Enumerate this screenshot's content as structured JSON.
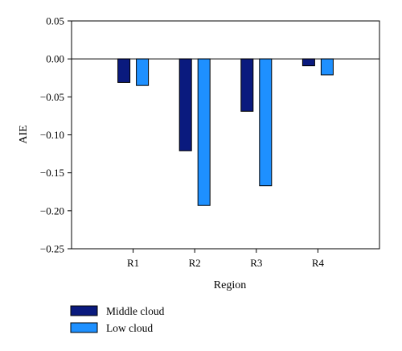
{
  "chart_data": {
    "type": "bar",
    "categories": [
      "R1",
      "R2",
      "R3",
      "R4"
    ],
    "series": [
      {
        "name": "Middle cloud",
        "values": [
          -0.031,
          -0.121,
          -0.069,
          -0.009
        ],
        "color": "#0a1a7e"
      },
      {
        "name": "Low cloud",
        "values": [
          -0.035,
          -0.193,
          -0.167,
          -0.021
        ],
        "color": "#1e90ff"
      }
    ],
    "xlabel": "Region",
    "ylabel": "AIE",
    "ylim": [
      -0.25,
      0.05
    ],
    "yticks": [
      0.05,
      0.0,
      -0.05,
      -0.1,
      -0.15,
      -0.2,
      -0.25
    ],
    "ytick_labels": [
      "0.05",
      "0.00",
      "−0.05",
      "−0.10",
      "−0.15",
      "−0.20",
      "−0.25"
    ],
    "grid": false,
    "legend_position": "bottom-left"
  }
}
